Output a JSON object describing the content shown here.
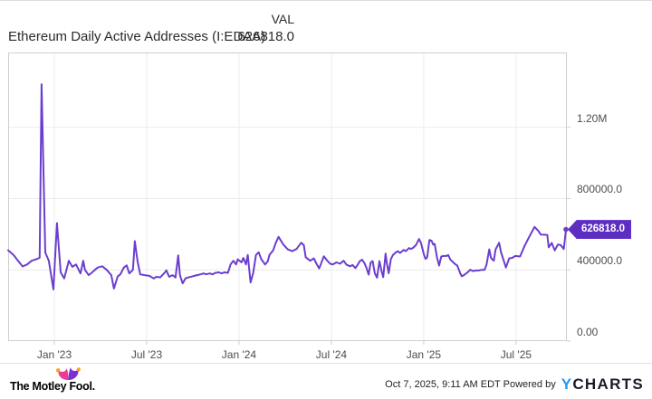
{
  "header": {
    "title": "Ethereum Daily Active Addresses (I:EDAA)",
    "value_label": "VAL",
    "value": "626818.0"
  },
  "chart_data": {
    "type": "line",
    "title": "Ethereum Daily Active Addresses (I:EDAA)",
    "series_name": "Ethereum Daily Active Addresses",
    "last_value": 626818.0,
    "last_value_label": "626818.0",
    "line_color": "#6B3ECF",
    "badge_color": "#5C2EC2",
    "grid": true,
    "legend": "none",
    "x_axis": {
      "unit": "months from Oct 2022",
      "range": [
        0,
        36.3
      ],
      "ticks": [
        {
          "t": 3,
          "label": "Jan '23"
        },
        {
          "t": 9,
          "label": "Jul '23"
        },
        {
          "t": 15,
          "label": "Jan '24"
        },
        {
          "t": 21,
          "label": "Jul '24"
        },
        {
          "t": 27,
          "label": "Jan '25"
        },
        {
          "t": 33,
          "label": "Jul '25"
        }
      ]
    },
    "y_axis": {
      "unit": "addresses",
      "range": [
        0,
        1620000
      ],
      "ticks": [
        {
          "v": 0,
          "label": "0.00"
        },
        {
          "v": 400000,
          "label": "400000.0"
        },
        {
          "v": 800000,
          "label": "800000.0"
        },
        {
          "v": 1200000,
          "label": "1.20M"
        }
      ]
    },
    "points": [
      [
        0,
        510000
      ],
      [
        0.35,
        484000
      ],
      [
        0.6,
        455000
      ],
      [
        0.94,
        419000
      ],
      [
        1.23,
        430000
      ],
      [
        1.53,
        451000
      ],
      [
        1.82,
        459000
      ],
      [
        2.05,
        468000
      ],
      [
        2.17,
        1442000
      ],
      [
        2.41,
        497000
      ],
      [
        2.64,
        451000
      ],
      [
        2.94,
        290000
      ],
      [
        3.17,
        662000
      ],
      [
        3.41,
        386000
      ],
      [
        3.64,
        352000
      ],
      [
        3.94,
        451000
      ],
      [
        4.17,
        417000
      ],
      [
        4.41,
        430000
      ],
      [
        4.7,
        380000
      ],
      [
        4.88,
        451000
      ],
      [
        4.99,
        400000
      ],
      [
        5.23,
        370000
      ],
      [
        5.46,
        386000
      ],
      [
        5.64,
        400000
      ],
      [
        5.82,
        413000
      ],
      [
        6.11,
        420000
      ],
      [
        6.4,
        400000
      ],
      [
        6.7,
        370000
      ],
      [
        6.87,
        295000
      ],
      [
        7.11,
        362000
      ],
      [
        7.29,
        375000
      ],
      [
        7.52,
        413000
      ],
      [
        7.7,
        425000
      ],
      [
        7.87,
        380000
      ],
      [
        8.11,
        400000
      ],
      [
        8.23,
        561000
      ],
      [
        8.4,
        451000
      ],
      [
        8.58,
        375000
      ],
      [
        8.87,
        370000
      ],
      [
        9.17,
        366000
      ],
      [
        9.46,
        352000
      ],
      [
        9.64,
        361000
      ],
      [
        9.87,
        357000
      ],
      [
        10.16,
        383000
      ],
      [
        10.28,
        397000
      ],
      [
        10.46,
        361000
      ],
      [
        10.69,
        370000
      ],
      [
        10.87,
        357000
      ],
      [
        11.05,
        481000
      ],
      [
        11.16,
        370000
      ],
      [
        11.34,
        324000
      ],
      [
        11.52,
        352000
      ],
      [
        11.69,
        357000
      ],
      [
        11.93,
        362000
      ],
      [
        12.1,
        366000
      ],
      [
        12.28,
        370000
      ],
      [
        12.51,
        375000
      ],
      [
        12.69,
        380000
      ],
      [
        12.87,
        375000
      ],
      [
        13.1,
        380000
      ],
      [
        13.28,
        375000
      ],
      [
        13.45,
        383000
      ],
      [
        13.69,
        386000
      ],
      [
        13.87,
        380000
      ],
      [
        14.04,
        386000
      ],
      [
        14.28,
        383000
      ],
      [
        14.45,
        430000
      ],
      [
        14.63,
        451000
      ],
      [
        14.81,
        430000
      ],
      [
        14.92,
        459000
      ],
      [
        15.16,
        442000
      ],
      [
        15.28,
        467000
      ],
      [
        15.45,
        430000
      ],
      [
        15.57,
        484000
      ],
      [
        15.75,
        329000
      ],
      [
        15.92,
        383000
      ],
      [
        16.1,
        484000
      ],
      [
        16.28,
        498000
      ],
      [
        16.45,
        459000
      ],
      [
        16.69,
        430000
      ],
      [
        16.86,
        447000
      ],
      [
        16.98,
        484000
      ],
      [
        17.22,
        510000
      ],
      [
        17.39,
        552000
      ],
      [
        17.57,
        585000
      ],
      [
        17.86,
        544000
      ],
      [
        18.16,
        515000
      ],
      [
        18.45,
        505000
      ],
      [
        18.74,
        517000
      ],
      [
        19.04,
        552000
      ],
      [
        19.21,
        539000
      ],
      [
        19.33,
        471000
      ],
      [
        19.62,
        451000
      ],
      [
        19.86,
        464000
      ],
      [
        20.03,
        434000
      ],
      [
        20.21,
        408000
      ],
      [
        20.51,
        476000
      ],
      [
        20.74,
        451000
      ],
      [
        20.92,
        434000
      ],
      [
        21.09,
        430000
      ],
      [
        21.33,
        442000
      ],
      [
        21.56,
        434000
      ],
      [
        21.8,
        451000
      ],
      [
        21.97,
        430000
      ],
      [
        22.21,
        420000
      ],
      [
        22.38,
        427000
      ],
      [
        22.56,
        410000
      ],
      [
        22.7,
        427000
      ],
      [
        22.85,
        449000
      ],
      [
        23,
        457000
      ],
      [
        23.15,
        437000
      ],
      [
        23.3,
        407000
      ],
      [
        23.42,
        373000
      ],
      [
        23.55,
        441000
      ],
      [
        23.68,
        449000
      ],
      [
        23.82,
        381000
      ],
      [
        23.97,
        356000
      ],
      [
        24.12,
        449000
      ],
      [
        24.27,
        390000
      ],
      [
        24.37,
        359000
      ],
      [
        24.52,
        491000
      ],
      [
        24.6,
        441000
      ],
      [
        24.72,
        381000
      ],
      [
        24.87,
        461000
      ],
      [
        25,
        483000
      ],
      [
        25.15,
        495000
      ],
      [
        25.32,
        505000
      ],
      [
        25.45,
        495000
      ],
      [
        25.54,
        500000
      ],
      [
        25.7,
        512000
      ],
      [
        25.84,
        505000
      ],
      [
        26.04,
        522000
      ],
      [
        26.18,
        517000
      ],
      [
        26.33,
        525000
      ],
      [
        26.49,
        539000
      ],
      [
        26.69,
        573000
      ],
      [
        26.82,
        551000
      ],
      [
        26.92,
        517000
      ],
      [
        27.02,
        483000
      ],
      [
        27.12,
        461000
      ],
      [
        27.22,
        470000
      ],
      [
        27.37,
        568000
      ],
      [
        27.51,
        563000
      ],
      [
        27.61,
        542000
      ],
      [
        27.71,
        546000
      ],
      [
        27.87,
        466000
      ],
      [
        28,
        424000
      ],
      [
        28.14,
        475000
      ],
      [
        28.3,
        478000
      ],
      [
        28.46,
        478000
      ],
      [
        28.59,
        483000
      ],
      [
        28.73,
        458000
      ],
      [
        28.89,
        444000
      ],
      [
        29.04,
        432000
      ],
      [
        29.18,
        424000
      ],
      [
        29.37,
        381000
      ],
      [
        29.47,
        364000
      ],
      [
        29.61,
        370000
      ],
      [
        29.85,
        386000
      ],
      [
        30.02,
        400000
      ],
      [
        30.2,
        393000
      ],
      [
        30.38,
        396000
      ],
      [
        30.55,
        396000
      ],
      [
        30.79,
        400000
      ],
      [
        30.96,
        400000
      ],
      [
        31.08,
        430000
      ],
      [
        31.26,
        515000
      ],
      [
        31.37,
        467000
      ],
      [
        31.55,
        451000
      ],
      [
        31.67,
        515000
      ],
      [
        31.9,
        552000
      ],
      [
        32.02,
        498000
      ],
      [
        32.2,
        451000
      ],
      [
        32.34,
        413000
      ],
      [
        32.55,
        464000
      ],
      [
        32.75,
        467000
      ],
      [
        32.95,
        478000
      ],
      [
        33.26,
        475000
      ],
      [
        33.55,
        534000
      ],
      [
        33.85,
        585000
      ],
      [
        34.2,
        641000
      ],
      [
        34.44,
        619000
      ],
      [
        34.6,
        598000
      ],
      [
        34.85,
        597000
      ],
      [
        35.03,
        595000
      ],
      [
        35.12,
        526000
      ],
      [
        35.32,
        551000
      ],
      [
        35.51,
        509000
      ],
      [
        35.71,
        542000
      ],
      [
        35.9,
        539000
      ],
      [
        36.1,
        517000
      ],
      [
        36.24,
        626818
      ]
    ]
  },
  "footer": {
    "brand": "The Motley Fool.",
    "timestamp": "Oct 7, 2025, 9:11 AM EDT",
    "powered_by": "Powered by",
    "logo": {
      "y": "Y",
      "charts": "CHARTS"
    }
  },
  "colors": {
    "gridline": "#ececec",
    "plot_border": "#cfcfcf",
    "axis_label": "#4d4d4d",
    "tmf_pink": "#ED3A95",
    "tmf_purple": "#7C2FD4",
    "tmf_orange": "#F9A11B",
    "ycharts_blue": "#2296F3",
    "ycharts_dark": "#1a1d29"
  }
}
